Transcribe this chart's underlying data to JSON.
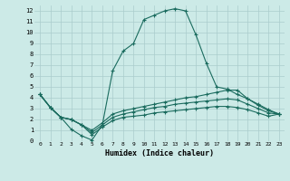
{
  "xlabel": "Humidex (Indice chaleur)",
  "bg_color": "#cceae7",
  "grid_color": "#aacccc",
  "line_color": "#1a6b5e",
  "xlim": [
    -0.5,
    23.5
  ],
  "ylim": [
    0,
    12.5
  ],
  "xticks": [
    0,
    1,
    2,
    3,
    4,
    5,
    6,
    7,
    8,
    9,
    10,
    11,
    12,
    13,
    14,
    15,
    16,
    17,
    18,
    19,
    20,
    21,
    22,
    23
  ],
  "yticks": [
    0,
    1,
    2,
    3,
    4,
    5,
    6,
    7,
    8,
    9,
    10,
    11,
    12
  ],
  "line1_x": [
    0,
    1,
    2,
    3,
    4,
    5,
    6,
    7,
    8,
    9,
    10,
    11,
    12,
    13,
    14,
    15,
    16,
    17,
    18,
    19,
    20,
    21,
    22,
    23
  ],
  "line1_y": [
    4.3,
    3.1,
    2.2,
    1.1,
    0.5,
    0.1,
    1.5,
    6.5,
    8.3,
    9.0,
    11.2,
    11.6,
    12.0,
    12.2,
    12.0,
    9.8,
    7.2,
    5.0,
    4.8,
    4.3,
    3.9,
    3.3,
    2.8,
    2.5
  ],
  "line2_x": [
    0,
    1,
    2,
    3,
    4,
    5,
    6,
    7,
    8,
    9,
    10,
    11,
    12,
    13,
    14,
    15,
    16,
    17,
    18,
    19,
    20,
    21,
    22,
    23
  ],
  "line2_y": [
    4.3,
    3.1,
    2.2,
    2.0,
    1.5,
    1.0,
    1.7,
    2.5,
    2.8,
    3.0,
    3.2,
    3.4,
    3.6,
    3.8,
    4.0,
    4.1,
    4.3,
    4.5,
    4.7,
    4.7,
    3.9,
    3.4,
    2.9,
    2.5
  ],
  "line3_x": [
    0,
    1,
    2,
    3,
    4,
    5,
    6,
    7,
    8,
    9,
    10,
    11,
    12,
    13,
    14,
    15,
    16,
    17,
    18,
    19,
    20,
    21,
    22,
    23
  ],
  "line3_y": [
    4.3,
    3.1,
    2.2,
    2.0,
    1.5,
    0.8,
    1.5,
    2.2,
    2.5,
    2.7,
    2.9,
    3.1,
    3.2,
    3.4,
    3.5,
    3.6,
    3.7,
    3.8,
    3.9,
    3.8,
    3.4,
    3.0,
    2.6,
    2.5
  ],
  "line4_x": [
    0,
    1,
    2,
    3,
    4,
    5,
    6,
    7,
    8,
    9,
    10,
    11,
    12,
    13,
    14,
    15,
    16,
    17,
    18,
    19,
    20,
    21,
    22,
    23
  ],
  "line4_y": [
    4.3,
    3.1,
    2.2,
    2.0,
    1.5,
    0.6,
    1.3,
    1.9,
    2.2,
    2.3,
    2.4,
    2.6,
    2.7,
    2.8,
    2.9,
    3.0,
    3.1,
    3.2,
    3.2,
    3.1,
    2.9,
    2.6,
    2.3,
    2.5
  ]
}
